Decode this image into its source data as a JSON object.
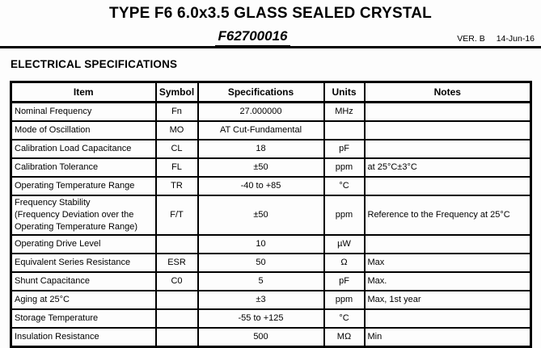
{
  "header": {
    "title": "TYPE F6 6.0x3.5 GLASS SEALED CRYSTAL",
    "part_number": "F62700016",
    "version": "VER. B",
    "date": "14-Jun-16"
  },
  "section": {
    "heading": "ELECTRICAL SPECIFICATIONS"
  },
  "table": {
    "headers": [
      "Item",
      "Symbol",
      "Specifications",
      "Units",
      "Notes"
    ],
    "rows": [
      {
        "item": "Nominal Frequency",
        "symbol": "Fn",
        "spec": "27.000000",
        "units": "MHz",
        "notes": ""
      },
      {
        "item": "Mode of Oscillation",
        "symbol": "MO",
        "spec": "AT Cut-Fundamental",
        "units": "",
        "notes": ""
      },
      {
        "item": "Calibration Load Capacitance",
        "symbol": "CL",
        "spec": "18",
        "units": "pF",
        "notes": ""
      },
      {
        "item": "Calibration Tolerance",
        "symbol": "FL",
        "spec": "±50",
        "units": "ppm",
        "notes": "at 25°C±3°C"
      },
      {
        "item": "Operating Temperature Range",
        "symbol": "TR",
        "spec": "-40 to +85",
        "units": "°C",
        "notes": ""
      },
      {
        "item": "Frequency Stability\n(Frequency Deviation over the\nOperating Temperature Range)",
        "symbol": "F/T",
        "spec": "±50",
        "units": "ppm",
        "notes": "Reference to the Frequency at 25°C"
      },
      {
        "item": "Operating Drive Level",
        "symbol": "",
        "spec": "10",
        "units": "µW",
        "notes": ""
      },
      {
        "item": "Equivalent Series Resistance",
        "symbol": "ESR",
        "spec": "50",
        "units": "Ω",
        "notes": "Max"
      },
      {
        "item": "Shunt Capacitance",
        "symbol": "C0",
        "spec": "5",
        "units": "pF",
        "notes": "Max."
      },
      {
        "item": "Aging at 25°C",
        "symbol": "",
        "spec": "±3",
        "units": "ppm",
        "notes": "Max, 1st year"
      },
      {
        "item": "Storage Temperature",
        "symbol": "",
        "spec": "-55 to +125",
        "units": "°C",
        "notes": ""
      },
      {
        "item": "Insulation Resistance",
        "symbol": "",
        "spec": "500",
        "units": "MΩ",
        "notes": "Min"
      }
    ]
  },
  "colors": {
    "text": "#000000",
    "background": "#fdfdfd",
    "border": "#000000"
  }
}
